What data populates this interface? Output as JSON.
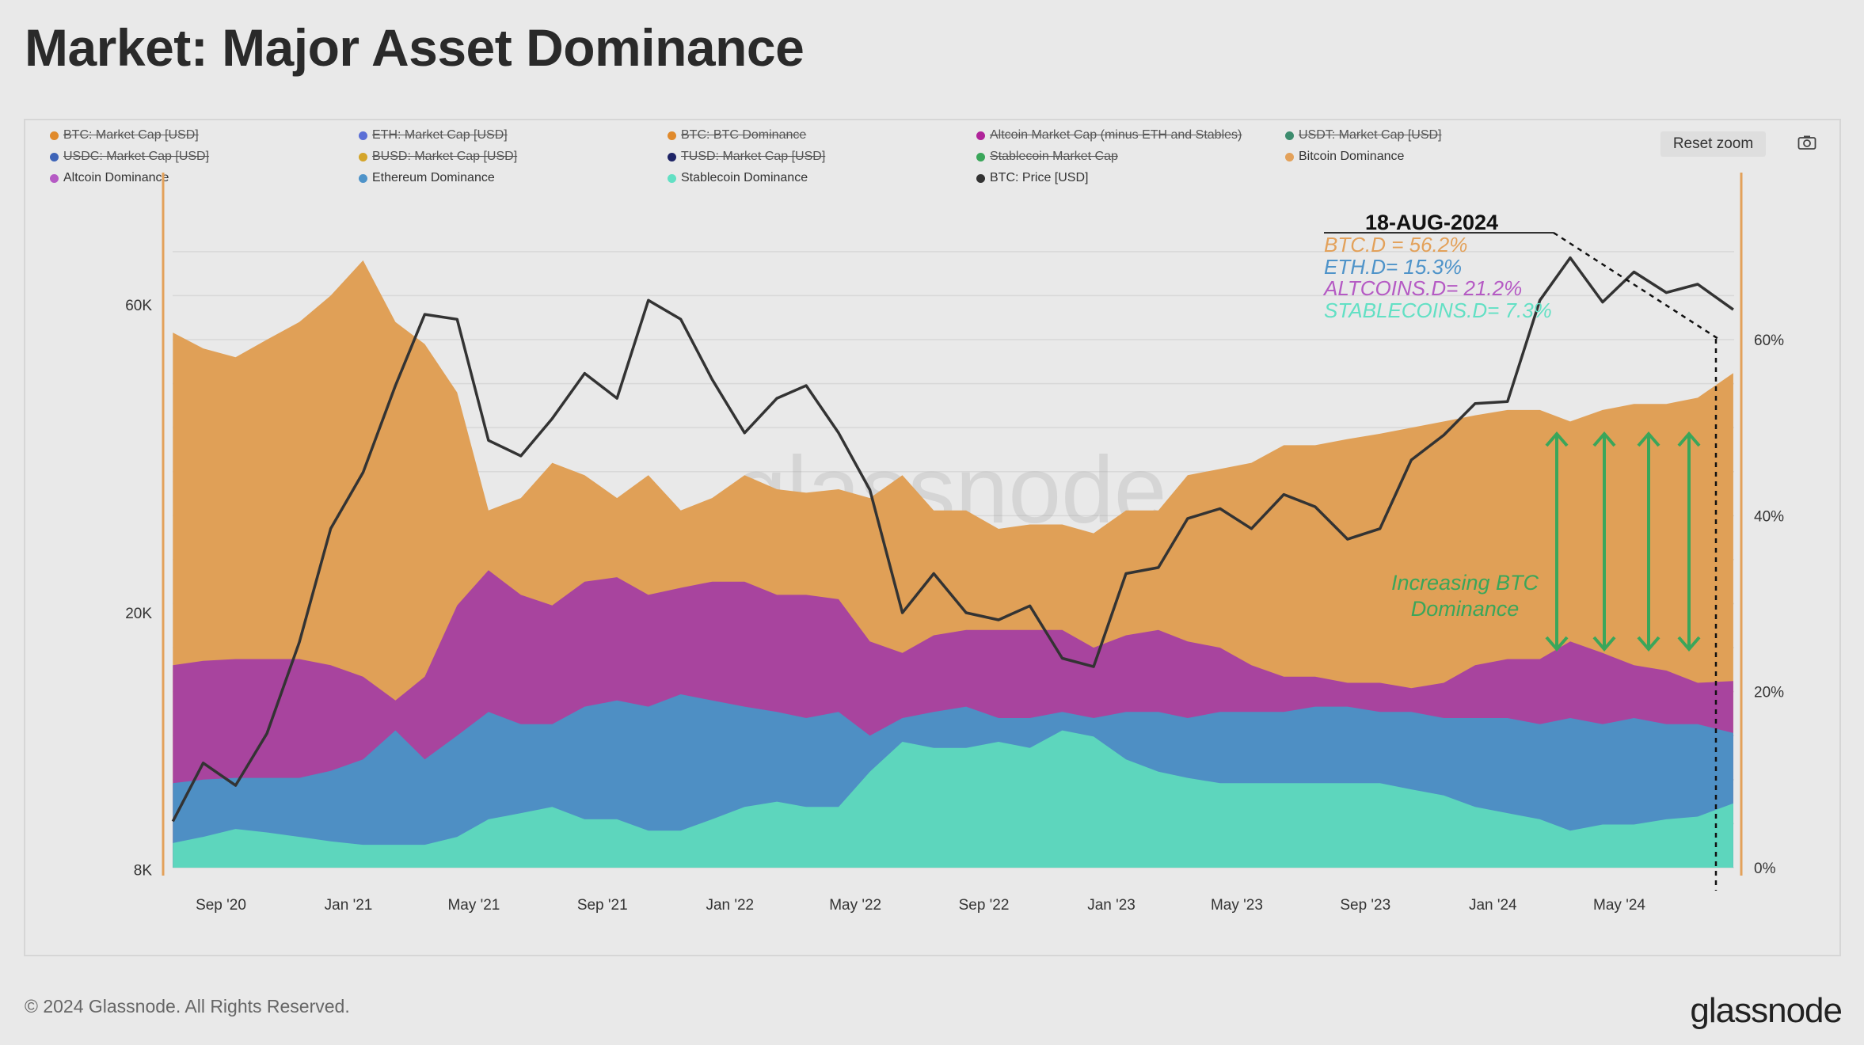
{
  "title": "Market: Major Asset Dominance",
  "footer": "© 2024 Glassnode. All Rights Reserved.",
  "logo": "glassnode",
  "watermark": "glassnode",
  "toolbar": {
    "reset_zoom": "Reset zoom",
    "camera_icon": "camera-icon"
  },
  "legend": [
    {
      "label": "BTC: Market Cap [USD]",
      "color": "#e08a2c",
      "hidden": true
    },
    {
      "label": "ETH: Market Cap [USD]",
      "color": "#5b6fd6",
      "hidden": true
    },
    {
      "label": "BTC: BTC Dominance",
      "color": "#e08a2c",
      "hidden": true
    },
    {
      "label": "Altcoin Market Cap (minus ETH and Stables)",
      "color": "#b0249a",
      "hidden": true
    },
    {
      "label": "USDT: Market Cap [USD]",
      "color": "#3d8c6e",
      "hidden": true
    },
    {
      "label": "USDC: Market Cap [USD]",
      "color": "#3e64b8",
      "hidden": true
    },
    {
      "label": "BUSD: Market Cap [USD]",
      "color": "#d4a52a",
      "hidden": true
    },
    {
      "label": "TUSD: Market Cap [USD]",
      "color": "#1e2466",
      "hidden": true
    },
    {
      "label": "Stablecoin Market Cap",
      "color": "#3aa65a",
      "hidden": true
    },
    {
      "label": "Bitcoin Dominance",
      "color": "#e3a15a",
      "hidden": false
    },
    {
      "label": "Altcoin Dominance",
      "color": "#b55ac4",
      "hidden": false
    },
    {
      "label": "Ethereum Dominance",
      "color": "#4e93c9",
      "hidden": false
    },
    {
      "label": "Stablecoin Dominance",
      "color": "#62e0c4",
      "hidden": false
    },
    {
      "label": "BTC: Price [USD]",
      "color": "#333333",
      "hidden": false
    }
  ],
  "chart_data": {
    "type": "area",
    "title": "Market: Major Asset Dominance",
    "x_tick_labels": [
      "Sep '20",
      "Jan '21",
      "May '21",
      "Sep '21",
      "Jan '22",
      "May '22",
      "Sep '22",
      "Jan '23",
      "May '23",
      "Sep '23",
      "Jan '24",
      "May '24"
    ],
    "x_ticks": [
      "2020-09-01",
      "2021-01-01",
      "2021-05-01",
      "2021-09-01",
      "2022-01-01",
      "2022-05-01",
      "2022-09-01",
      "2023-01-01",
      "2023-05-01",
      "2023-09-01",
      "2024-01-01",
      "2024-05-01"
    ],
    "left_axis": {
      "scale": "log",
      "range": [
        8000,
        90000
      ],
      "ticks": [
        8000,
        20000,
        60000
      ],
      "tick_labels": [
        "8K",
        "20K",
        "60K"
      ]
    },
    "right_axis": {
      "scale": "linear",
      "range": [
        0,
        60
      ],
      "ticks": [
        0,
        20,
        40,
        60
      ],
      "tick_labels": [
        "0%",
        "20%",
        "40%",
        "60%"
      ]
    },
    "grid": true,
    "legend_placement": "top",
    "x": [
      "2020-07-17",
      "2020-08-15",
      "2020-09-15",
      "2020-10-15",
      "2020-11-15",
      "2020-12-15",
      "2021-01-15",
      "2021-02-15",
      "2021-03-15",
      "2021-04-15",
      "2021-05-15",
      "2021-06-15",
      "2021-07-15",
      "2021-08-15",
      "2021-09-15",
      "2021-10-15",
      "2021-11-15",
      "2021-12-15",
      "2022-01-15",
      "2022-02-15",
      "2022-03-15",
      "2022-04-15",
      "2022-05-15",
      "2022-06-15",
      "2022-07-15",
      "2022-08-15",
      "2022-09-15",
      "2022-10-15",
      "2022-11-15",
      "2022-12-15",
      "2023-01-15",
      "2023-02-15",
      "2023-03-15",
      "2023-04-15",
      "2023-05-15",
      "2023-06-15",
      "2023-07-15",
      "2023-08-15",
      "2023-09-15",
      "2023-10-15",
      "2023-11-15",
      "2023-12-15",
      "2024-01-15",
      "2024-02-15",
      "2024-03-15",
      "2024-04-15",
      "2024-05-15",
      "2024-06-15",
      "2024-07-15",
      "2024-08-18"
    ],
    "series": [
      {
        "name": "Bitcoin Dominance",
        "axis": "right",
        "color": "#e0a057",
        "values": [
          60.8,
          59,
          58,
          60,
          62,
          65,
          69,
          62,
          59.5,
          54,
          40.6,
          42,
          46,
          44.6,
          42,
          44.6,
          40.6,
          42,
          44.6,
          43,
          42.6,
          43,
          42,
          44.6,
          40.6,
          40.6,
          38.5,
          39,
          39,
          38,
          40.6,
          40.6,
          44.6,
          45.3,
          46,
          48,
          48,
          48.7,
          49.3,
          50,
          50.7,
          51.4,
          52,
          52,
          50.7,
          52,
          52.7,
          52.7,
          53.4,
          56.2
        ]
      },
      {
        "name": "Altcoin Dominance",
        "axis": "right",
        "color": "#a8449e",
        "values": [
          23,
          23.5,
          23.7,
          23.7,
          23.7,
          23,
          21.7,
          19,
          21.7,
          29.8,
          33.8,
          31,
          29.8,
          32.5,
          33,
          31,
          31.8,
          32.5,
          32.5,
          31,
          31,
          30.5,
          25.7,
          24.4,
          26.4,
          27,
          27,
          27,
          27,
          25,
          26.4,
          27,
          25.7,
          25,
          23,
          21.7,
          21.7,
          21,
          21,
          20.4,
          21,
          23,
          23.7,
          23.7,
          25.7,
          24.4,
          23,
          22.4,
          21,
          21.2
        ]
      },
      {
        "name": "Ethereum Dominance",
        "axis": "right",
        "color": "#4e8fc4",
        "values": [
          9.6,
          10,
          10.2,
          10.2,
          10.2,
          11,
          12.3,
          15.6,
          12.3,
          15,
          17.7,
          16.3,
          16.3,
          18.3,
          19,
          18.3,
          19.7,
          19,
          18.3,
          17.7,
          17,
          17.7,
          15,
          17,
          17.7,
          18.3,
          17,
          17,
          17.7,
          17,
          17.7,
          17.7,
          17,
          17.7,
          17.7,
          17.7,
          18.3,
          18.3,
          17.7,
          17.7,
          17,
          17,
          17,
          16.3,
          17,
          16.3,
          17,
          16.3,
          16.3,
          15.3
        ]
      },
      {
        "name": "Stablecoin Dominance",
        "axis": "right",
        "color": "#5dd6bd",
        "values": [
          2.8,
          3.5,
          4.4,
          4,
          3.5,
          3,
          2.6,
          2.6,
          2.6,
          3.5,
          5.5,
          6.2,
          6.9,
          5.5,
          5.5,
          4.2,
          4.2,
          5.5,
          6.9,
          7.5,
          6.9,
          6.9,
          10.9,
          14.3,
          13.6,
          13.6,
          14.3,
          13.6,
          15.6,
          14.9,
          12.3,
          10.9,
          10.2,
          9.6,
          9.6,
          9.6,
          9.6,
          9.6,
          9.6,
          8.9,
          8.2,
          6.9,
          6.2,
          5.5,
          4.2,
          4.9,
          4.9,
          5.5,
          5.8,
          7.3
        ]
      },
      {
        "name": "BTC: Price [USD]",
        "axis": "left",
        "color": "#333333",
        "values": [
          9500,
          11700,
          10800,
          13000,
          18000,
          27000,
          33000,
          45000,
          58000,
          57000,
          37000,
          35000,
          40000,
          47000,
          43000,
          61000,
          57000,
          46000,
          38000,
          43000,
          45000,
          38000,
          31000,
          20000,
          23000,
          20000,
          19500,
          20500,
          17000,
          16500,
          23000,
          23500,
          28000,
          29000,
          27000,
          30500,
          29200,
          26000,
          27000,
          34500,
          37700,
          42200,
          42500,
          61000,
          71000,
          60600,
          67500,
          62700,
          64600,
          59000
        ]
      }
    ],
    "annotations": {
      "date": "18-AUG-2024",
      "btc_d": "BTC.D = 56.2%",
      "eth_d": "ETH.D= 15.3%",
      "alt_d": "ALTCOINS.D= 21.2%",
      "stable_d": "STABLECOINS.D= 7.3%",
      "trend_line1": "Increasing BTC",
      "trend_line2": "Dominance",
      "colors": {
        "btc": "#e3a15a",
        "eth": "#4e93c9",
        "alt": "#b55ac4",
        "stable": "#62e0c4",
        "trend": "#3aa65a"
      }
    }
  }
}
